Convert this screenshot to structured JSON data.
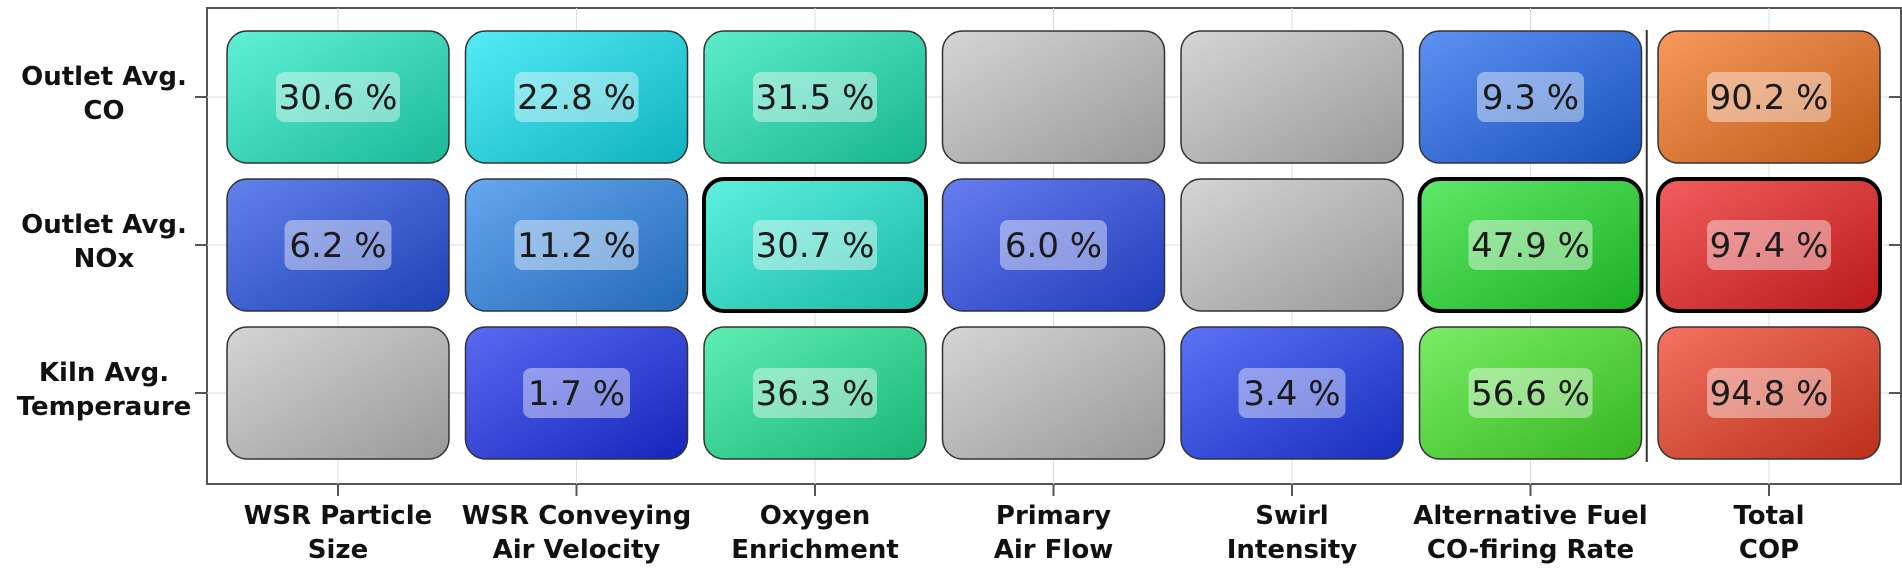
{
  "chart_data": {
    "type": "heatmap",
    "rows": [
      {
        "label_lines": [
          "Outlet Avg.",
          "CO"
        ]
      },
      {
        "label_lines": [
          "Outlet Avg.",
          "NOx"
        ]
      },
      {
        "label_lines": [
          "Kiln Avg.",
          "Temperaure"
        ]
      }
    ],
    "columns": [
      {
        "label_lines": [
          "WSR Particle",
          "Size"
        ]
      },
      {
        "label_lines": [
          "WSR Conveying",
          "Air Velocity"
        ]
      },
      {
        "label_lines": [
          "Oxygen",
          "Enrichment"
        ]
      },
      {
        "label_lines": [
          "Primary",
          "Air Flow"
        ]
      },
      {
        "label_lines": [
          "Swirl",
          "Intensity"
        ]
      },
      {
        "label_lines": [
          "Alternative Fuel",
          "CO-firing Rate"
        ]
      },
      {
        "label_lines": [
          "Total",
          "COP"
        ]
      }
    ],
    "values": [
      [
        30.6,
        22.8,
        31.5,
        null,
        null,
        9.3,
        90.2
      ],
      [
        6.2,
        11.2,
        30.7,
        6.0,
        null,
        47.9,
        97.4
      ],
      [
        null,
        1.7,
        36.3,
        null,
        3.4,
        56.6,
        94.8
      ]
    ],
    "value_labels": [
      [
        "30.6 %",
        "22.8 %",
        "31.5 %",
        "",
        "",
        "9.3 %",
        "90.2 %"
      ],
      [
        "6.2 %",
        "11.2 %",
        "30.7 %",
        "6.0 %",
        "",
        "47.9 %",
        "97.4 %"
      ],
      [
        "",
        "1.7 %",
        "36.3 %",
        "",
        "3.4 %",
        "56.6 %",
        "94.8 %"
      ]
    ],
    "colors": [
      [
        "#22ecc6",
        "#12e4f4",
        "#1ee8b6",
        "#c4c4c4",
        "#c4c4c4",
        "#1f68ee",
        "#f4731e"
      ],
      [
        "#2552e6",
        "#2b86ea",
        "#20ecd4",
        "#2b4cec",
        "#c4c4c4",
        "#22e02e",
        "#ee2020"
      ],
      [
        "#c4c4c4",
        "#1b30ee",
        "#20e896",
        "#c4c4c4",
        "#1d3bf2",
        "#46e82a",
        "#f03c22"
      ]
    ],
    "highlighted": [
      [
        false,
        false,
        false,
        false,
        false,
        false,
        false
      ],
      [
        false,
        false,
        true,
        false,
        false,
        true,
        true
      ],
      [
        false,
        false,
        false,
        false,
        false,
        false,
        false
      ]
    ],
    "unit": "%",
    "grid": true,
    "separator_before_column": 6
  }
}
